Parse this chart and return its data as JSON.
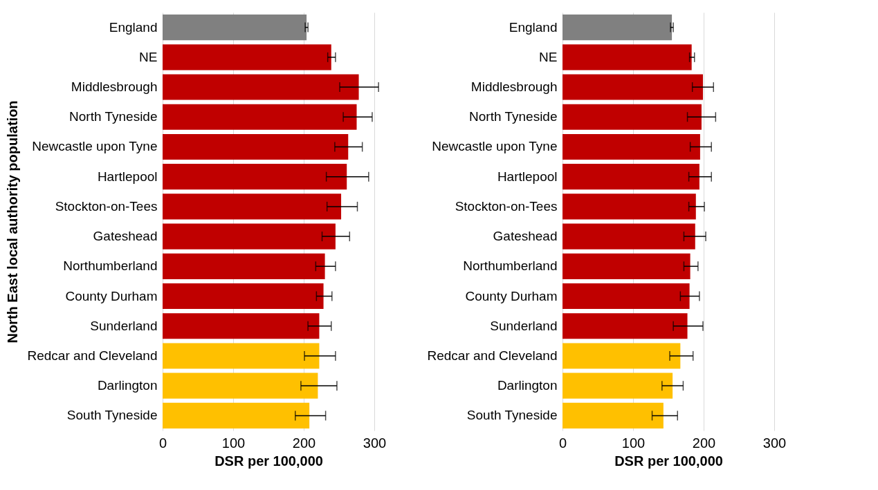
{
  "chart_data": [
    {
      "type": "bar",
      "orientation": "horizontal",
      "ylabel": "North East local authority population",
      "xlabel": "DSR per 100,000",
      "categories": [
        "England",
        "NE",
        "Middlesbrough",
        "North Tyneside",
        "Newcastle upon Tyne",
        "Hartlepool",
        "Stockton-on-Tees",
        "Gateshead",
        "Northumberland",
        "County Durham",
        "Sunderland",
        "Redcar and Cleveland",
        "Darlington",
        "South Tyneside"
      ],
      "values": [
        204,
        239,
        278,
        275,
        263,
        261,
        253,
        245,
        230,
        228,
        222,
        222,
        220,
        208
      ],
      "colors": [
        "#808080",
        "#c00000",
        "#c00000",
        "#c00000",
        "#c00000",
        "#c00000",
        "#c00000",
        "#c00000",
        "#c00000",
        "#c00000",
        "#c00000",
        "#ffc000",
        "#ffc000",
        "#ffc000"
      ],
      "errors": [
        [
          202,
          206
        ],
        [
          234,
          245
        ],
        [
          251,
          306
        ],
        [
          256,
          297
        ],
        [
          244,
          283
        ],
        [
          232,
          292
        ],
        [
          233,
          276
        ],
        [
          226,
          265
        ],
        [
          217,
          245
        ],
        [
          218,
          240
        ],
        [
          206,
          239
        ],
        [
          201,
          245
        ],
        [
          196,
          247
        ],
        [
          188,
          231
        ]
      ],
      "xlim": [
        0,
        300
      ],
      "xticks": [
        0,
        100,
        200,
        300
      ],
      "grid": "x"
    },
    {
      "type": "bar",
      "orientation": "horizontal",
      "xlabel": "DSR per 100,000",
      "categories": [
        "England",
        "NE",
        "Middlesbrough",
        "North Tyneside",
        "Newcastle upon Tyne",
        "Hartlepool",
        "Stockton-on-Tees",
        "Gateshead",
        "Northumberland",
        "County Durham",
        "Sunderland",
        "Redcar and Cleveland",
        "Darlington",
        "South Tyneside"
      ],
      "values": [
        155,
        183,
        199,
        197,
        195,
        194,
        189,
        188,
        181,
        180,
        177,
        167,
        156,
        143
      ],
      "colors": [
        "#808080",
        "#c00000",
        "#c00000",
        "#c00000",
        "#c00000",
        "#c00000",
        "#c00000",
        "#c00000",
        "#c00000",
        "#c00000",
        "#c00000",
        "#ffc000",
        "#ffc000",
        "#ffc000"
      ],
      "errors": [
        [
          153,
          157
        ],
        [
          180,
          187
        ],
        [
          184,
          214
        ],
        [
          177,
          217
        ],
        [
          181,
          211
        ],
        [
          179,
          211
        ],
        [
          179,
          201
        ],
        [
          172,
          203
        ],
        [
          172,
          192
        ],
        [
          167,
          194
        ],
        [
          157,
          199
        ],
        [
          152,
          185
        ],
        [
          141,
          171
        ],
        [
          127,
          163
        ]
      ],
      "xlim": [
        0,
        300
      ],
      "xticks": [
        0,
        100,
        200,
        300
      ],
      "grid": "x"
    }
  ]
}
